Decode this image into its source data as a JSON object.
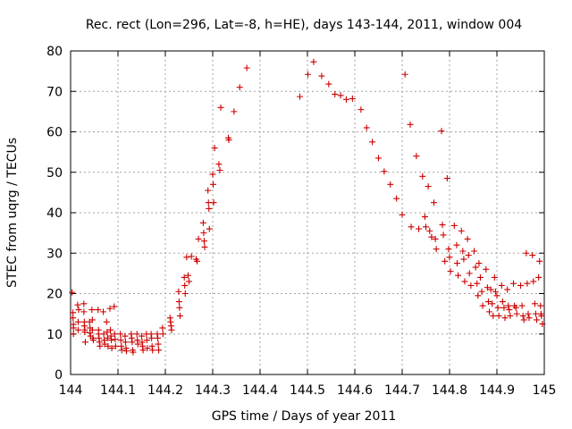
{
  "chart_data": {
    "type": "scatter",
    "title": "Rec. rect (Lon=296, Lat=-8, h=HE), days 143-144, 2011, window 004",
    "xlabel": "GPS time / Days of year 2011",
    "ylabel": "STEC from uqrg / TECUs",
    "xlim": [
      144,
      145
    ],
    "ylim": [
      0,
      80
    ],
    "x_ticks": [
      "144",
      "144.1",
      "144.2",
      "144.3",
      "144.4",
      "144.5",
      "144.6",
      "144.7",
      "144.8",
      "144.9",
      "145"
    ],
    "y_ticks": [
      "0",
      "10",
      "20",
      "30",
      "40",
      "50",
      "60",
      "70",
      "80"
    ],
    "grid": true,
    "marker": "+",
    "color": "#cc0000",
    "series": [
      {
        "name": "STEC",
        "points": [
          [
            144.003,
            20.3
          ],
          [
            144.005,
            15.3
          ],
          [
            144.005,
            14.0
          ],
          [
            144.006,
            12.4
          ],
          [
            144.006,
            11.5
          ],
          [
            144.006,
            10.0
          ],
          [
            144.015,
            17.2
          ],
          [
            144.016,
            13.0
          ],
          [
            144.016,
            11.0
          ],
          [
            144.017,
            16.0
          ],
          [
            144.028,
            17.5
          ],
          [
            144.028,
            15.5
          ],
          [
            144.029,
            13.0
          ],
          [
            144.029,
            12.0
          ],
          [
            144.03,
            11.0
          ],
          [
            144.03,
            10.5
          ],
          [
            144.031,
            8.0
          ],
          [
            144.04,
            13.0
          ],
          [
            144.041,
            11.5
          ],
          [
            144.041,
            10.3
          ],
          [
            144.042,
            9.5
          ],
          [
            144.045,
            16.0
          ],
          [
            144.046,
            13.5
          ],
          [
            144.046,
            11.0
          ],
          [
            144.047,
            9.0
          ],
          [
            144.048,
            8.5
          ],
          [
            144.058,
            16.0
          ],
          [
            144.059,
            11.0
          ],
          [
            144.059,
            10.0
          ],
          [
            144.06,
            9.0
          ],
          [
            144.061,
            8.0
          ],
          [
            144.062,
            7.0
          ],
          [
            144.069,
            15.5
          ],
          [
            144.07,
            10.0
          ],
          [
            144.071,
            8.5
          ],
          [
            144.072,
            7.5
          ],
          [
            144.076,
            13.0
          ],
          [
            144.077,
            10.5
          ],
          [
            144.078,
            9.0
          ],
          [
            144.079,
            7.0
          ],
          [
            144.083,
            16.3
          ],
          [
            144.084,
            11.0
          ],
          [
            144.085,
            9.5
          ],
          [
            144.086,
            8.5
          ],
          [
            144.087,
            6.5
          ],
          [
            144.092,
            16.8
          ],
          [
            144.093,
            10.0
          ],
          [
            144.094,
            8.7
          ],
          [
            144.095,
            7.0
          ],
          [
            144.105,
            10.0
          ],
          [
            144.106,
            8.5
          ],
          [
            144.107,
            7.0
          ],
          [
            144.108,
            6.0
          ],
          [
            144.115,
            9.5
          ],
          [
            144.116,
            8.0
          ],
          [
            144.117,
            6.5
          ],
          [
            144.118,
            5.8
          ],
          [
            144.128,
            10.0
          ],
          [
            144.129,
            9.0
          ],
          [
            144.13,
            8.0
          ],
          [
            144.131,
            6.0
          ],
          [
            144.132,
            5.5
          ],
          [
            144.14,
            10.0
          ],
          [
            144.141,
            8.5
          ],
          [
            144.142,
            7.5
          ],
          [
            144.15,
            9.5
          ],
          [
            144.151,
            8.0
          ],
          [
            144.152,
            7.0
          ],
          [
            144.153,
            6.0
          ],
          [
            144.16,
            10.0
          ],
          [
            144.161,
            8.5
          ],
          [
            144.162,
            6.5
          ],
          [
            144.17,
            10.0
          ],
          [
            144.171,
            9.0
          ],
          [
            144.172,
            7.0
          ],
          [
            144.173,
            6.0
          ],
          [
            144.183,
            10.0
          ],
          [
            144.184,
            9.0
          ],
          [
            144.185,
            7.5
          ],
          [
            144.186,
            6.0
          ],
          [
            144.194,
            11.5
          ],
          [
            144.195,
            10.0
          ],
          [
            144.21,
            14.0
          ],
          [
            144.211,
            13.0
          ],
          [
            144.212,
            12.0
          ],
          [
            144.213,
            11.0
          ],
          [
            144.228,
            20.5
          ],
          [
            144.229,
            18.0
          ],
          [
            144.23,
            16.5
          ],
          [
            144.231,
            14.5
          ],
          [
            144.24,
            24.0
          ],
          [
            144.241,
            22.0
          ],
          [
            144.242,
            20.0
          ],
          [
            144.245,
            29.0
          ],
          [
            144.248,
            24.5
          ],
          [
            144.25,
            23.0
          ],
          [
            144.255,
            29.2
          ],
          [
            144.265,
            28.5
          ],
          [
            144.267,
            28.0
          ],
          [
            144.27,
            33.5
          ],
          [
            144.28,
            37.5
          ],
          [
            144.281,
            35.0
          ],
          [
            144.282,
            33.0
          ],
          [
            144.283,
            31.5
          ],
          [
            144.29,
            45.5
          ],
          [
            144.291,
            42.5
          ],
          [
            144.292,
            41.0
          ],
          [
            144.293,
            36.0
          ],
          [
            144.3,
            49.5
          ],
          [
            144.301,
            47.0
          ],
          [
            144.302,
            42.5
          ],
          [
            144.304,
            56.0
          ],
          [
            144.313,
            52.0
          ],
          [
            144.315,
            50.5
          ],
          [
            144.317,
            66.0
          ],
          [
            144.333,
            58.5
          ],
          [
            144.334,
            58.0
          ],
          [
            144.345,
            65.0
          ],
          [
            144.357,
            71.0
          ],
          [
            144.372,
            75.8
          ],
          [
            144.484,
            68.7
          ],
          [
            144.501,
            74.2
          ],
          [
            144.513,
            77.3
          ],
          [
            144.53,
            73.8
          ],
          [
            144.545,
            71.8
          ],
          [
            144.558,
            69.3
          ],
          [
            144.57,
            69.0
          ],
          [
            144.582,
            68.0
          ],
          [
            144.595,
            68.2
          ],
          [
            144.613,
            65.5
          ],
          [
            144.625,
            61.0
          ],
          [
            144.637,
            57.5
          ],
          [
            144.65,
            53.5
          ],
          [
            144.662,
            50.2
          ],
          [
            144.675,
            47.0
          ],
          [
            144.688,
            43.5
          ],
          [
            144.7,
            39.5
          ],
          [
            144.706,
            74.2
          ],
          [
            144.717,
            61.8
          ],
          [
            144.719,
            36.5
          ],
          [
            144.73,
            54.0
          ],
          [
            144.735,
            36.0
          ],
          [
            144.743,
            49.0
          ],
          [
            144.748,
            39.0
          ],
          [
            144.75,
            36.5
          ],
          [
            144.755,
            46.5
          ],
          [
            144.758,
            35.5
          ],
          [
            144.762,
            34.0
          ],
          [
            144.767,
            42.5
          ],
          [
            144.77,
            33.5
          ],
          [
            144.772,
            31.0
          ],
          [
            144.783,
            60.2
          ],
          [
            144.785,
            37.0
          ],
          [
            144.787,
            34.5
          ],
          [
            144.79,
            28.0
          ],
          [
            144.795,
            48.5
          ],
          [
            144.798,
            31.0
          ],
          [
            144.8,
            29.0
          ],
          [
            144.802,
            25.5
          ],
          [
            144.81,
            36.8
          ],
          [
            144.815,
            32.0
          ],
          [
            144.816,
            27.5
          ],
          [
            144.818,
            24.5
          ],
          [
            144.825,
            35.5
          ],
          [
            144.828,
            30.5
          ],
          [
            144.83,
            28.5
          ],
          [
            144.832,
            23.0
          ],
          [
            144.838,
            33.5
          ],
          [
            144.84,
            29.5
          ],
          [
            144.842,
            25.0
          ],
          [
            144.845,
            22.0
          ],
          [
            144.852,
            30.5
          ],
          [
            144.855,
            26.5
          ],
          [
            144.858,
            22.5
          ],
          [
            144.86,
            19.5
          ],
          [
            144.862,
            27.5
          ],
          [
            144.865,
            24.0
          ],
          [
            144.868,
            20.5
          ],
          [
            144.87,
            17.0
          ],
          [
            144.877,
            26.0
          ],
          [
            144.88,
            21.5
          ],
          [
            144.882,
            18.0
          ],
          [
            144.884,
            15.5
          ],
          [
            144.887,
            21.0
          ],
          [
            144.89,
            17.5
          ],
          [
            144.892,
            14.5
          ],
          [
            144.895,
            24.0
          ],
          [
            144.897,
            20.5
          ],
          [
            144.9,
            19.5
          ],
          [
            144.902,
            16.5
          ],
          [
            144.904,
            14.5
          ],
          [
            144.91,
            22.0
          ],
          [
            144.912,
            18.0
          ],
          [
            144.915,
            16.5
          ],
          [
            144.917,
            14.0
          ],
          [
            144.922,
            21.0
          ],
          [
            144.924,
            17.0
          ],
          [
            144.926,
            16.0
          ],
          [
            144.928,
            14.5
          ],
          [
            144.935,
            22.5
          ],
          [
            144.937,
            17.0
          ],
          [
            144.94,
            16.5
          ],
          [
            144.942,
            15.0
          ],
          [
            144.95,
            22.0
          ],
          [
            144.953,
            17.0
          ],
          [
            144.955,
            14.5
          ],
          [
            144.957,
            13.5
          ],
          [
            144.962,
            30.0
          ],
          [
            144.964,
            22.5
          ],
          [
            144.966,
            15.0
          ],
          [
            144.968,
            14.0
          ],
          [
            144.975,
            29.5
          ],
          [
            144.977,
            23.0
          ],
          [
            144.98,
            17.5
          ],
          [
            144.982,
            15.0
          ],
          [
            144.984,
            13.5
          ],
          [
            144.988,
            24.0
          ],
          [
            144.99,
            28.0
          ],
          [
            144.992,
            17.0
          ],
          [
            144.993,
            15.0
          ],
          [
            144.994,
            14.5
          ],
          [
            144.996,
            12.5
          ]
        ]
      }
    ]
  }
}
